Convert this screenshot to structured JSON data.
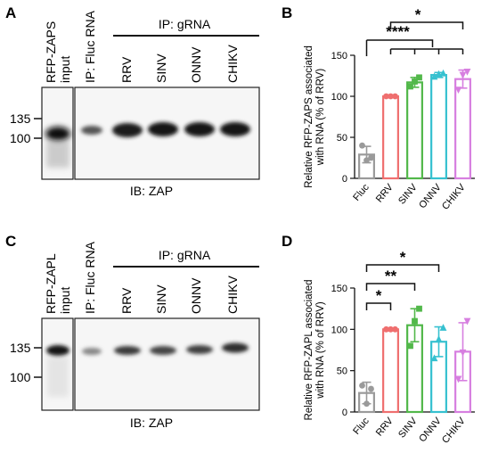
{
  "panels": {
    "A": {
      "letter": "A",
      "input_label_top": "RFP-ZAPS",
      "input_label_bottom": "input",
      "fluc_label": "IP: Fluc RNA",
      "ip_header": "IP: gRNA",
      "lane_labels": [
        "RRV",
        "SINV",
        "ONNV",
        "CHIKV"
      ],
      "markers": [
        "135",
        "100"
      ],
      "ib_label": "IB: ZAP"
    },
    "C": {
      "letter": "C",
      "input_label_top": "RFP-ZAPL",
      "input_label_bottom": "input",
      "fluc_label": "IP: Fluc RNA",
      "ip_header": "IP: gRNA",
      "lane_labels": [
        "RRV",
        "SINV",
        "ONNV",
        "CHIKV"
      ],
      "markers": [
        "135",
        "100"
      ],
      "ib_label": "IB: ZAP"
    }
  },
  "chart_data": [
    {
      "panel": "B",
      "type": "bar",
      "ylabel_line1": "Relative RFP-ZAPS associated",
      "ylabel_line2": "with RNA (% of RRV)",
      "ylim": [
        0,
        150
      ],
      "yticks": [
        0,
        50,
        100,
        150
      ],
      "categories": [
        "Fluc",
        "RRV",
        "SINV",
        "ONNV",
        "CHIKV"
      ],
      "colors": [
        "#9a9a9a",
        "#ef6f6f",
        "#52b84a",
        "#36c1d0",
        "#d77fe0"
      ],
      "markers": [
        "circle",
        "circle",
        "square",
        "triangle-up",
        "triangle-down"
      ],
      "values": [
        29,
        100,
        117,
        126,
        121
      ],
      "errors": [
        10,
        0,
        6,
        3,
        11
      ],
      "points": [
        [
          40,
          22,
          25
        ],
        [
          100,
          100,
          100
        ],
        [
          112,
          118,
          123
        ],
        [
          124,
          127,
          128
        ],
        [
          108,
          126,
          130
        ]
      ],
      "significance": [
        {
          "label": "*",
          "from": 1,
          "to": [
            4
          ]
        },
        {
          "label": "****",
          "from": 0,
          "to": [
            1,
            2,
            3,
            4
          ]
        }
      ]
    },
    {
      "panel": "D",
      "type": "bar",
      "ylabel_line1": "Relative RFP-ZAPL associated",
      "ylabel_line2": "with RNA (% of RRV)",
      "ylim": [
        0,
        150
      ],
      "yticks": [
        0,
        50,
        100,
        150
      ],
      "categories": [
        "Fluc",
        "RRV",
        "SINV",
        "ONNV",
        "CHIKV"
      ],
      "colors": [
        "#9a9a9a",
        "#ef6f6f",
        "#52b84a",
        "#36c1d0",
        "#d77fe0"
      ],
      "markers": [
        "circle",
        "circle",
        "square",
        "triangle-up",
        "triangle-down"
      ],
      "values": [
        23,
        100,
        105,
        85,
        73
      ],
      "errors": [
        13,
        0,
        20,
        18,
        35
      ],
      "points": [
        [
          32,
          10,
          28
        ],
        [
          100,
          100,
          100
        ],
        [
          80,
          110,
          125
        ],
        [
          65,
          88,
          102
        ],
        [
          40,
          72,
          110
        ]
      ],
      "significance": [
        {
          "label": "*",
          "from": 0,
          "to": [
            1
          ]
        },
        {
          "label": "**",
          "from": 0,
          "to": [
            2
          ]
        },
        {
          "label": "*",
          "from": 0,
          "to": [
            3
          ]
        }
      ]
    }
  ]
}
